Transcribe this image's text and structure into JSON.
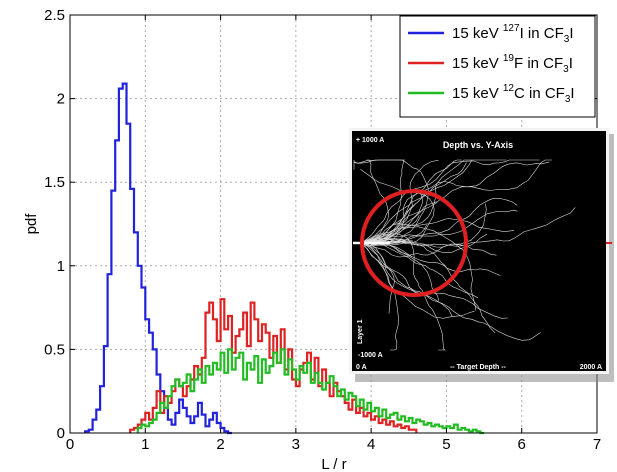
{
  "chart_data": {
    "type": "histogram-step",
    "xlabel": "L / r",
    "ylabel": "pdf",
    "xlim": [
      0,
      7
    ],
    "ylim": [
      0,
      2.5
    ],
    "xticks": [
      "0",
      "1",
      "2",
      "3",
      "4",
      "5",
      "6",
      "7"
    ],
    "yticks": [
      "0",
      "0.5",
      "1",
      "1.5",
      "2",
      "2.5"
    ],
    "grid": true,
    "legend_position": "top-right",
    "bin_width": 0.05,
    "series": [
      {
        "name_parts": [
          "15 keV ",
          "127",
          "I in CF",
          "3",
          "I"
        ],
        "color": "#2222dd",
        "x0": 0.2,
        "values": [
          0.01,
          0.02,
          0.08,
          0.14,
          0.28,
          0.52,
          0.95,
          1.45,
          1.75,
          2.06,
          2.09,
          1.85,
          1.46,
          1.2,
          1.0,
          0.87,
          0.68,
          0.6,
          0.5,
          0.35,
          0.25,
          0.15,
          0.08,
          0.05,
          0.12,
          0.2,
          0.15,
          0.1,
          0.06,
          0.1,
          0.18,
          0.11,
          0.04,
          0.08,
          0.12,
          0.06,
          0.03,
          0.01,
          0.0
        ]
      },
      {
        "name_parts": [
          "15 keV ",
          "19",
          "F in CF",
          "3",
          "I"
        ],
        "color": "#dd2222",
        "x0": 0.8,
        "values": [
          0.02,
          0.03,
          0.05,
          0.08,
          0.12,
          0.08,
          0.15,
          0.25,
          0.12,
          0.22,
          0.18,
          0.25,
          0.32,
          0.28,
          0.22,
          0.28,
          0.32,
          0.4,
          0.35,
          0.45,
          0.72,
          0.78,
          0.68,
          0.55,
          0.8,
          0.62,
          0.7,
          0.48,
          0.58,
          0.62,
          0.72,
          0.52,
          0.78,
          0.68,
          0.55,
          0.65,
          0.6,
          0.45,
          0.58,
          0.42,
          0.62,
          0.38,
          0.5,
          0.32,
          0.28,
          0.38,
          0.42,
          0.48,
          0.32,
          0.45,
          0.28,
          0.38,
          0.3,
          0.22,
          0.3,
          0.25,
          0.22,
          0.18,
          0.14,
          0.2,
          0.12,
          0.15,
          0.1,
          0.12,
          0.08,
          0.1,
          0.06,
          0.08,
          0.05,
          0.07,
          0.04,
          0.05,
          0.03,
          0.04,
          0.02,
          0.02
        ]
      },
      {
        "name_parts": [
          "15 keV ",
          "12",
          "C in CF",
          "3",
          "I"
        ],
        "color": "#22bb22",
        "x0": 0.9,
        "values": [
          0.03,
          0.05,
          0.04,
          0.06,
          0.08,
          0.12,
          0.18,
          0.15,
          0.22,
          0.28,
          0.32,
          0.28,
          0.3,
          0.35,
          0.25,
          0.32,
          0.38,
          0.3,
          0.4,
          0.35,
          0.42,
          0.38,
          0.48,
          0.36,
          0.5,
          0.38,
          0.45,
          0.48,
          0.32,
          0.42,
          0.38,
          0.46,
          0.3,
          0.44,
          0.36,
          0.4,
          0.48,
          0.42,
          0.5,
          0.35,
          0.44,
          0.38,
          0.32,
          0.4,
          0.36,
          0.42,
          0.3,
          0.36,
          0.3,
          0.26,
          0.3,
          0.34,
          0.28,
          0.22,
          0.26,
          0.2,
          0.24,
          0.22,
          0.16,
          0.2,
          0.14,
          0.18,
          0.13,
          0.15,
          0.1,
          0.14,
          0.09,
          0.11,
          0.12,
          0.08,
          0.1,
          0.07,
          0.09,
          0.06,
          0.08,
          0.07,
          0.05,
          0.06,
          0.04,
          0.05,
          0.04,
          0.03,
          0.04,
          0.03,
          0.05,
          0.02,
          0.03,
          0.02,
          0.01,
          0.02,
          0.01,
          0.0
        ]
      }
    ],
    "inset": {
      "title": "Depth vs. Y-Axis",
      "top_left": "+ 1000 A",
      "bottom_left": "-1000 A",
      "side_label": "Layer 1",
      "x_left": "0 A",
      "x_center": "-- Target Depth --",
      "x_right": "2000 A"
    }
  }
}
